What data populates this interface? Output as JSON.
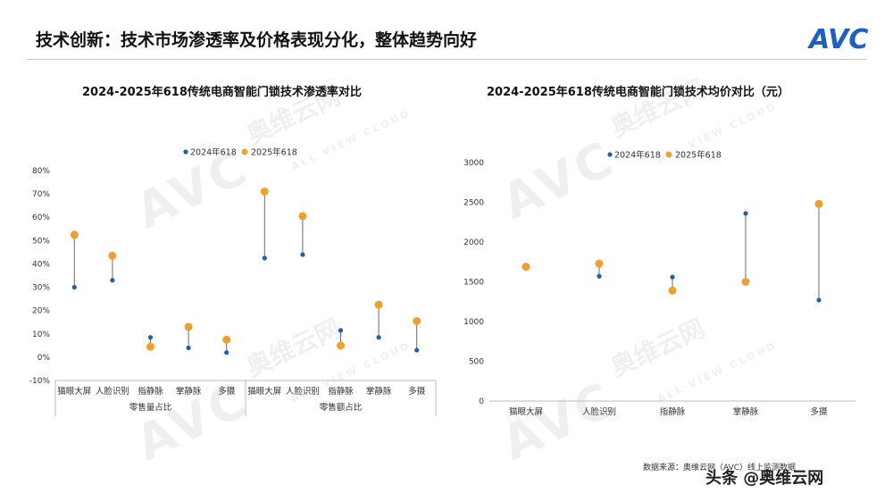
{
  "header": {
    "title": "技术创新：技术市场渗透率及价格表现分化，整体趋势向好",
    "brand": "AVC",
    "brand_color": "#1f5fbf"
  },
  "watermark": {
    "brand": "AVC",
    "cn": "奥维云网",
    "en": "ALL VIEW CLOUD"
  },
  "footer": {
    "source": "数据来源：奥维云网（AVC）线上监测数据",
    "badge": "头条 @奥维云网"
  },
  "colors": {
    "series_2024": "#1f5fa8",
    "series_2025": "#f0a030",
    "connector": "#6b6b6b"
  },
  "chart_data": [
    {
      "type": "scatter",
      "title": "2024-2025年618传统电商智能门锁技术渗透率对比",
      "categories": [
        "猫眼大屏",
        "人脸识别",
        "指静脉",
        "掌静脉",
        "多摄",
        "猫眼大屏",
        "人脸识别",
        "指静脉",
        "掌静脉",
        "多摄"
      ],
      "groups": [
        {
          "label": "零售量占比",
          "from": 0,
          "to": 4
        },
        {
          "label": "零售额占比",
          "from": 5,
          "to": 9
        }
      ],
      "series": [
        {
          "name": "2024年618",
          "values": [
            30,
            33,
            8.5,
            4,
            2,
            42.5,
            44,
            11.5,
            8.5,
            3
          ]
        },
        {
          "name": "2025年618",
          "values": [
            52.5,
            43.5,
            4.5,
            13,
            7.5,
            71,
            60.5,
            5,
            22.5,
            15.5
          ]
        }
      ],
      "ylim": [
        -10,
        80
      ],
      "yticks": [
        "80%",
        "70%",
        "60%",
        "50%",
        "40%",
        "30%",
        "20%",
        "10%",
        "0%",
        "-10%"
      ],
      "grid": false,
      "legend": "top"
    },
    {
      "type": "scatter",
      "title": "2024-2025年618传统电商智能门锁技术均价对比（元）",
      "categories": [
        "猫眼大屏",
        "人脸识别",
        "指静脉",
        "掌静脉",
        "多摄"
      ],
      "series": [
        {
          "name": "2024年618",
          "values": [
            null,
            1570,
            1560,
            2360,
            1270
          ]
        },
        {
          "name": "2025年618",
          "values": [
            1690,
            1730,
            1390,
            1500,
            2480
          ]
        }
      ],
      "ylim": [
        0,
        3000
      ],
      "yticks": [
        "3000",
        "2500",
        "2000",
        "1500",
        "1000",
        "500",
        "0"
      ],
      "grid": false,
      "legend": "top"
    }
  ]
}
